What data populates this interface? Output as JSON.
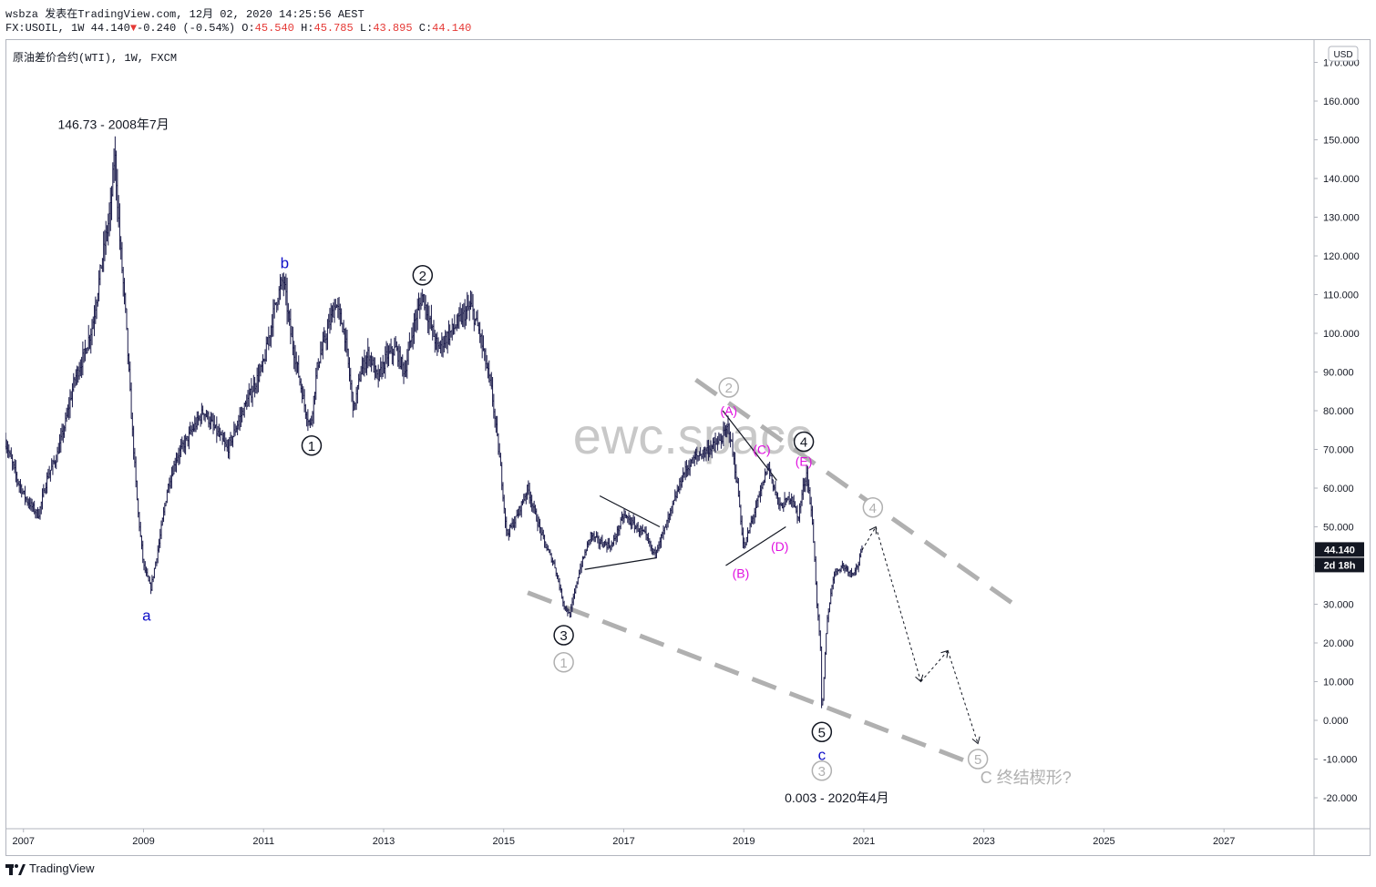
{
  "header": {
    "line1": "wsbza 发表在TradingView.com, 12月 02, 2020 14:25:56 AEST",
    "symbol": "FX:USOIL, 1W 44.140",
    "change_arrow": "▼",
    "change": "-0.240 (-0.54%)",
    "o_label": "O:",
    "o_value": "45.540",
    "h_label": "H:",
    "h_value": "45.785",
    "l_label": "L:",
    "l_value": "43.895",
    "c_label": "C:",
    "c_value": "44.140"
  },
  "legend": "原油差价合约(WTI), 1W, FXCM",
  "footer": {
    "brand": "TradingView"
  },
  "colors": {
    "candles": "#1a1a4a",
    "wave_blue": "#1010c8",
    "wave_magenta": "#e010e0",
    "channel": "#b0b0b0",
    "accent_red": "#e53935"
  },
  "chart_data": {
    "type": "line",
    "currency": "USD",
    "price_tag": "44.140",
    "time_tag": "2d 18h",
    "x_range": [
      2006.7,
      2028.5
    ],
    "ylim": [
      -28,
      176
    ],
    "y_ticks": [
      170,
      160,
      150,
      140,
      130,
      120,
      110,
      100,
      90,
      80,
      70,
      60,
      50,
      40,
      30,
      20,
      10,
      0,
      -10,
      -20
    ],
    "y_tick_labels": [
      "170.000",
      "160.000",
      "150.000",
      "140.000",
      "130.000",
      "120.000",
      "110.000",
      "100.000",
      "90.000",
      "80.000",
      "70.000",
      "60.000",
      "50.000",
      "40.000",
      "30.000",
      "20.000",
      "10.000",
      "0.000",
      "-10.000",
      "-20.000"
    ],
    "x_ticks": [
      2007,
      2009,
      2011,
      2013,
      2015,
      2017,
      2019,
      2021,
      2023,
      2025,
      2027
    ],
    "x_tick_labels": [
      "2007",
      "2009",
      "2011",
      "2013",
      "2015",
      "2017",
      "2019",
      "2021",
      "2023",
      "2025",
      "2027"
    ],
    "price_path": [
      [
        2006.7,
        72
      ],
      [
        2006.9,
        62
      ],
      [
        2007.05,
        57
      ],
      [
        2007.25,
        53
      ],
      [
        2007.4,
        63
      ],
      [
        2007.55,
        68
      ],
      [
        2007.7,
        77
      ],
      [
        2007.85,
        88
      ],
      [
        2008.0,
        94
      ],
      [
        2008.15,
        102
      ],
      [
        2008.3,
        118
      ],
      [
        2008.45,
        132
      ],
      [
        2008.52,
        146.7
      ],
      [
        2008.6,
        125
      ],
      [
        2008.7,
        105
      ],
      [
        2008.8,
        78
      ],
      [
        2008.9,
        55
      ],
      [
        2009.0,
        40
      ],
      [
        2009.12,
        34
      ],
      [
        2009.25,
        45
      ],
      [
        2009.4,
        60
      ],
      [
        2009.55,
        68
      ],
      [
        2009.7,
        72
      ],
      [
        2009.85,
        76
      ],
      [
        2010.0,
        80
      ],
      [
        2010.2,
        75
      ],
      [
        2010.4,
        70
      ],
      [
        2010.6,
        78
      ],
      [
        2010.8,
        85
      ],
      [
        2011.0,
        92
      ],
      [
        2011.2,
        108
      ],
      [
        2011.33,
        114
      ],
      [
        2011.45,
        100
      ],
      [
        2011.6,
        88
      ],
      [
        2011.7,
        80
      ],
      [
        2011.78,
        76
      ],
      [
        2011.9,
        92
      ],
      [
        2012.05,
        100
      ],
      [
        2012.2,
        108
      ],
      [
        2012.35,
        100
      ],
      [
        2012.5,
        80
      ],
      [
        2012.62,
        90
      ],
      [
        2012.75,
        95
      ],
      [
        2012.9,
        88
      ],
      [
        2013.05,
        94
      ],
      [
        2013.2,
        96
      ],
      [
        2013.35,
        90
      ],
      [
        2013.5,
        102
      ],
      [
        2013.65,
        110
      ],
      [
        2013.75,
        104
      ],
      [
        2013.9,
        96
      ],
      [
        2014.1,
        100
      ],
      [
        2014.3,
        104
      ],
      [
        2014.45,
        107
      ],
      [
        2014.6,
        100
      ],
      [
        2014.8,
        85
      ],
      [
        2014.95,
        65
      ],
      [
        2015.05,
        48
      ],
      [
        2015.2,
        52
      ],
      [
        2015.4,
        60
      ],
      [
        2015.55,
        52
      ],
      [
        2015.7,
        45
      ],
      [
        2015.85,
        40
      ],
      [
        2016.0,
        30
      ],
      [
        2016.1,
        27
      ],
      [
        2016.25,
        38
      ],
      [
        2016.45,
        48
      ],
      [
        2016.6,
        46
      ],
      [
        2016.8,
        45
      ],
      [
        2017.0,
        53
      ],
      [
        2017.2,
        50
      ],
      [
        2017.35,
        48
      ],
      [
        2017.5,
        43
      ],
      [
        2017.7,
        50
      ],
      [
        2017.85,
        57
      ],
      [
        2018.0,
        64
      ],
      [
        2018.2,
        68
      ],
      [
        2018.4,
        70
      ],
      [
        2018.6,
        72
      ],
      [
        2018.75,
        76
      ],
      [
        2018.9,
        60
      ],
      [
        2019.0,
        44
      ],
      [
        2019.1,
        50
      ],
      [
        2019.3,
        60
      ],
      [
        2019.4,
        66
      ],
      [
        2019.6,
        55
      ],
      [
        2019.8,
        58
      ],
      [
        2019.9,
        52
      ],
      [
        2020.0,
        61
      ],
      [
        2020.05,
        64
      ],
      [
        2020.15,
        50
      ],
      [
        2020.22,
        30
      ],
      [
        2020.28,
        18
      ],
      [
        2020.3,
        0
      ],
      [
        2020.38,
        25
      ],
      [
        2020.5,
        38
      ],
      [
        2020.65,
        40
      ],
      [
        2020.8,
        38
      ],
      [
        2020.9,
        40
      ],
      [
        2020.97,
        44.1
      ]
    ],
    "channel_upper": [
      [
        2018.2,
        88
      ],
      [
        2023.5,
        30
      ]
    ],
    "channel_lower": [
      [
        2015.4,
        33
      ],
      [
        2022.95,
        -12
      ]
    ],
    "projection_path": [
      [
        2020.97,
        44
      ],
      [
        2021.2,
        50
      ],
      [
        2021.95,
        10
      ],
      [
        2022.4,
        18
      ],
      [
        2022.9,
        -6
      ]
    ],
    "triangle_lines": [
      [
        [
          2018.65,
          80
        ],
        [
          2019.55,
          62
        ]
      ],
      [
        [
          2018.7,
          40
        ],
        [
          2019.7,
          50
        ]
      ],
      [
        [
          2016.6,
          58
        ],
        [
          2017.6,
          50
        ]
      ],
      [
        [
          2016.35,
          39
        ],
        [
          2017.55,
          42
        ]
      ]
    ],
    "annotations": [
      {
        "text": "146.73 - 2008年7月",
        "x": 2008.5,
        "y": 154,
        "style": "plain"
      },
      {
        "text": "a",
        "x": 2009.05,
        "y": 27,
        "style": "blue"
      },
      {
        "text": "b",
        "x": 2011.35,
        "y": 118,
        "style": "blue"
      },
      {
        "text": "1",
        "x": 2011.8,
        "y": 71,
        "style": "circle-black"
      },
      {
        "text": "2",
        "x": 2013.65,
        "y": 115,
        "style": "circle-black"
      },
      {
        "text": "3",
        "x": 2016.0,
        "y": 22,
        "style": "circle-black"
      },
      {
        "text": "1",
        "x": 2016.0,
        "y": 15,
        "style": "circle-grey"
      },
      {
        "text": "2",
        "x": 2018.75,
        "y": 86,
        "style": "circle-grey"
      },
      {
        "text": "(A)",
        "x": 2018.75,
        "y": 80,
        "style": "magenta"
      },
      {
        "text": "(B)",
        "x": 2018.95,
        "y": 38,
        "style": "magenta"
      },
      {
        "text": "(C)",
        "x": 2019.3,
        "y": 70,
        "style": "magenta"
      },
      {
        "text": "(D)",
        "x": 2019.6,
        "y": 45,
        "style": "magenta"
      },
      {
        "text": "4",
        "x": 2020.0,
        "y": 72,
        "style": "circle-black"
      },
      {
        "text": "(E)",
        "x": 2020.0,
        "y": 67,
        "style": "magenta"
      },
      {
        "text": "4",
        "x": 2021.15,
        "y": 55,
        "style": "circle-grey"
      },
      {
        "text": "5",
        "x": 2020.3,
        "y": -3,
        "style": "circle-black"
      },
      {
        "text": "c",
        "x": 2020.3,
        "y": -9,
        "style": "blue"
      },
      {
        "text": "3",
        "x": 2020.3,
        "y": -13,
        "style": "circle-grey"
      },
      {
        "text": "0.003 - 2020年4月",
        "x": 2020.55,
        "y": -20,
        "style": "plain"
      },
      {
        "text": "5",
        "x": 2022.9,
        "y": -10,
        "style": "circle-grey"
      },
      {
        "text": "C 终结楔形?",
        "x": 2023.7,
        "y": -15,
        "style": "grey-big"
      }
    ],
    "watermark": "ewc.space"
  }
}
